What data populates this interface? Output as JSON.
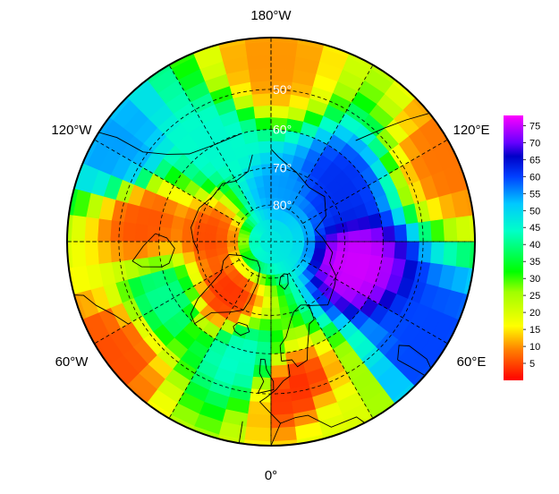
{
  "map": {
    "projection": "north-polar-stereographic",
    "longitude_labels": [
      {
        "id": "180w",
        "text": "180°W"
      },
      {
        "id": "120w",
        "text": "120°W"
      },
      {
        "id": "120e",
        "text": "120°E"
      },
      {
        "id": "60w",
        "text": "60°W"
      },
      {
        "id": "60e",
        "text": "60°E"
      },
      {
        "id": "0",
        "text": "0°"
      }
    ],
    "latitude_labels": [
      {
        "id": "50",
        "text": "50°",
        "lat": 50
      },
      {
        "id": "60",
        "text": "60°",
        "lat": 60
      },
      {
        "id": "70",
        "text": "70°",
        "lat": 70
      },
      {
        "id": "80",
        "text": "80°",
        "lat": 80
      }
    ],
    "graticule": {
      "latitudes": [
        50,
        60,
        70,
        80
      ],
      "meridian_step_deg": 30,
      "style": "dashed"
    },
    "field": {
      "value_range": [
        0,
        78
      ],
      "grid_resolution": {
        "lat_deg": 3,
        "lon_deg": 7.5
      },
      "regions": [
        {
          "name": "eurasia-interior-high",
          "lon": 75,
          "lat": 67,
          "value": 76
        },
        {
          "name": "east-siberia-high",
          "lon": 130,
          "lat": 68,
          "value": 62
        },
        {
          "name": "pacific-arctic-high",
          "lon": 170,
          "lat": 77,
          "value": 55
        },
        {
          "name": "north-pole-cap",
          "lon": 0,
          "lat": 90,
          "value": 48
        },
        {
          "name": "canadian-archipelago-low",
          "lon": -95,
          "lat": 75,
          "value": 4
        },
        {
          "name": "greenland-low",
          "lon": -40,
          "lat": 71,
          "value": 2
        },
        {
          "name": "north-atlantic-high",
          "lon": -15,
          "lat": 58,
          "value": 45
        },
        {
          "name": "europe-low",
          "lon": 10,
          "lat": 50,
          "value": 2
        },
        {
          "name": "north-africa-mid",
          "lon": 20,
          "lat": 40,
          "value": 20
        },
        {
          "name": "middle-east-high",
          "lon": 55,
          "lat": 42,
          "value": 60
        },
        {
          "name": "east-asia-low",
          "lon": 115,
          "lat": 40,
          "value": 8
        },
        {
          "name": "north-pacific-mid",
          "lon": 180,
          "lat": 45,
          "value": 10
        },
        {
          "name": "alaska-high",
          "lon": -150,
          "lat": 60,
          "value": 45
        },
        {
          "name": "west-north-america-high",
          "lon": -120,
          "lat": 45,
          "value": 55
        },
        {
          "name": "central-north-america-low",
          "lon": -100,
          "lat": 55,
          "value": 5
        },
        {
          "name": "mid-atlantic-low",
          "lon": -55,
          "lat": 42,
          "value": 5
        },
        {
          "name": "labrador-sea-high",
          "lon": -60,
          "lat": 58,
          "value": 42
        }
      ]
    }
  },
  "colorbar": {
    "ticks": [
      "5",
      "10",
      "15",
      "20",
      "25",
      "30",
      "35",
      "40",
      "45",
      "50",
      "55",
      "60",
      "65",
      "70",
      "75"
    ],
    "tick_values": [
      5,
      10,
      15,
      20,
      25,
      30,
      35,
      40,
      45,
      50,
      55,
      60,
      65,
      70,
      75
    ],
    "range": [
      0,
      78
    ],
    "color_stops": [
      {
        "value": 0,
        "color": "#ff0000"
      },
      {
        "value": 9,
        "color": "#ff8000"
      },
      {
        "value": 16,
        "color": "#ffff00"
      },
      {
        "value": 26,
        "color": "#a0ff00"
      },
      {
        "value": 32,
        "color": "#00ff00"
      },
      {
        "value": 44,
        "color": "#00ffc8"
      },
      {
        "value": 52,
        "color": "#00c8ff"
      },
      {
        "value": 60,
        "color": "#0040ff"
      },
      {
        "value": 66,
        "color": "#0000c8"
      },
      {
        "value": 70,
        "color": "#6600ff"
      },
      {
        "value": 78,
        "color": "#ff00ff"
      }
    ]
  }
}
